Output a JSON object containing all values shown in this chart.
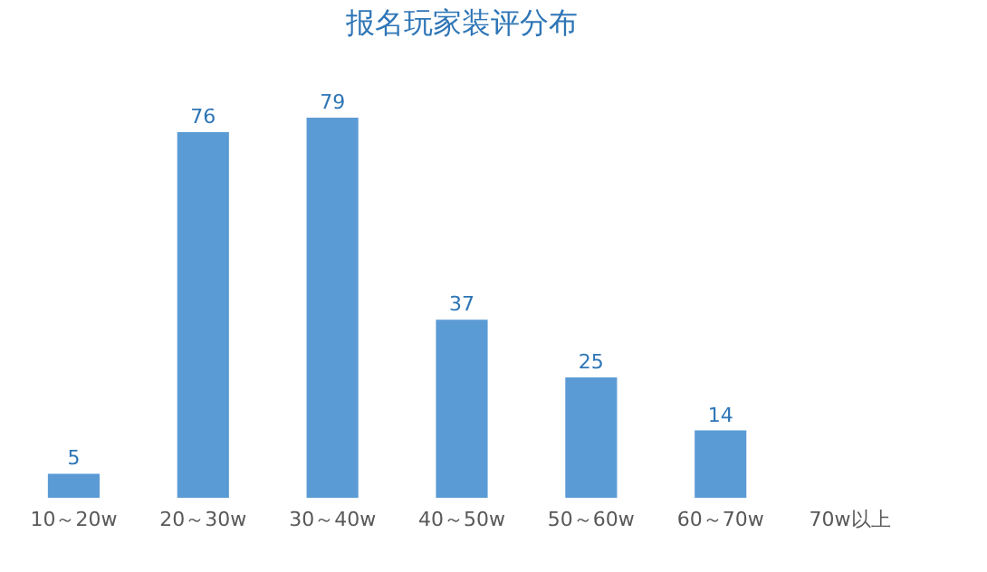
{
  "chart_data": {
    "type": "bar",
    "title": "报名玩家装评分布",
    "categories": [
      "10～20w",
      "20～30w",
      "30～40w",
      "40～50w",
      "50～60w",
      "60～70w",
      "70w以上"
    ],
    "values": [
      5,
      76,
      79,
      37,
      25,
      14,
      null
    ],
    "color": "#5b9bd5",
    "data_labels": true
  }
}
